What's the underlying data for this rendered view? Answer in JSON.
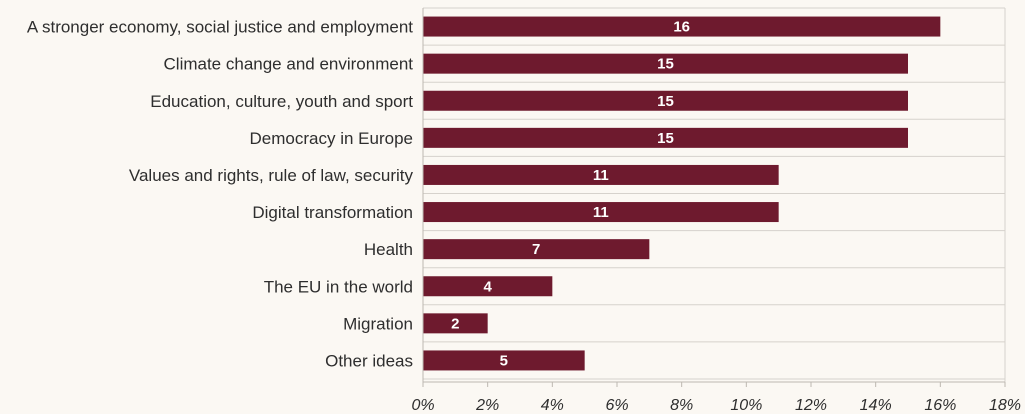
{
  "chart_data": {
    "type": "bar",
    "orientation": "horizontal",
    "categories": [
      "A stronger economy, social justice and employment",
      "Climate change and environment",
      "Education, culture, youth and sport",
      "Democracy in Europe",
      "Values and rights, rule of law, security",
      "Digital transformation",
      "Health",
      "The EU in the world",
      "Migration",
      "Other ideas"
    ],
    "values": [
      16,
      15,
      15,
      15,
      11,
      11,
      7,
      4,
      2,
      5
    ],
    "data_labels": [
      "16",
      "15",
      "15",
      "15",
      "11",
      "11",
      "7",
      "4",
      "2",
      "5"
    ],
    "x_ticks": [
      "0%",
      "2%",
      "4%",
      "6%",
      "8%",
      "10%",
      "12%",
      "14%",
      "16%",
      "18%"
    ],
    "xlim": [
      0,
      18
    ],
    "grid": true,
    "bar_color": "#6e1a2e",
    "grid_color": "#d6d2cc",
    "background_color": "#fbf8f3",
    "title": "",
    "xlabel": "",
    "ylabel": ""
  }
}
